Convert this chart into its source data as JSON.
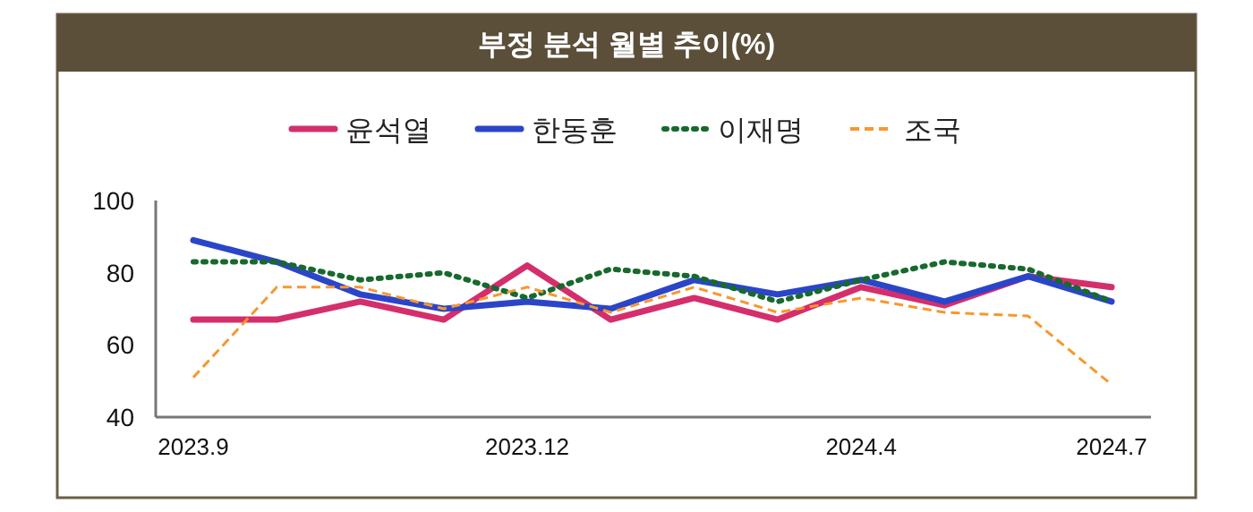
{
  "chart_data": {
    "type": "line",
    "title": "부정 분석 월별 추이(%)",
    "categories": [
      "2023.9",
      null,
      null,
      null,
      "2023.12",
      null,
      null,
      null,
      "2024.4",
      null,
      null,
      "2024.7"
    ],
    "series": [
      {
        "name": "윤석열",
        "color": "#d42e6c",
        "line_style": "solid",
        "values": [
          67,
          67,
          72,
          67,
          82,
          67,
          73,
          67,
          76,
          71,
          79,
          76
        ]
      },
      {
        "name": "한동훈",
        "color": "#2b45c9",
        "line_style": "solid",
        "values": [
          89,
          83,
          74,
          70,
          72,
          70,
          78,
          74,
          78,
          72,
          79,
          72
        ]
      },
      {
        "name": "이재명",
        "color": "#17692d",
        "line_style": "dotted",
        "values": [
          83,
          83,
          78,
          80,
          73,
          81,
          79,
          72,
          78,
          83,
          81,
          72
        ]
      },
      {
        "name": "조국",
        "color": "#f7972f",
        "line_style": "dashed",
        "values": [
          51,
          76,
          76,
          70,
          76,
          69,
          76,
          69,
          73,
          69,
          68,
          49
        ]
      }
    ],
    "ylim": [
      40,
      100
    ],
    "yticks": [
      40,
      60,
      80,
      100
    ],
    "legend": "top",
    "grid": false
  }
}
